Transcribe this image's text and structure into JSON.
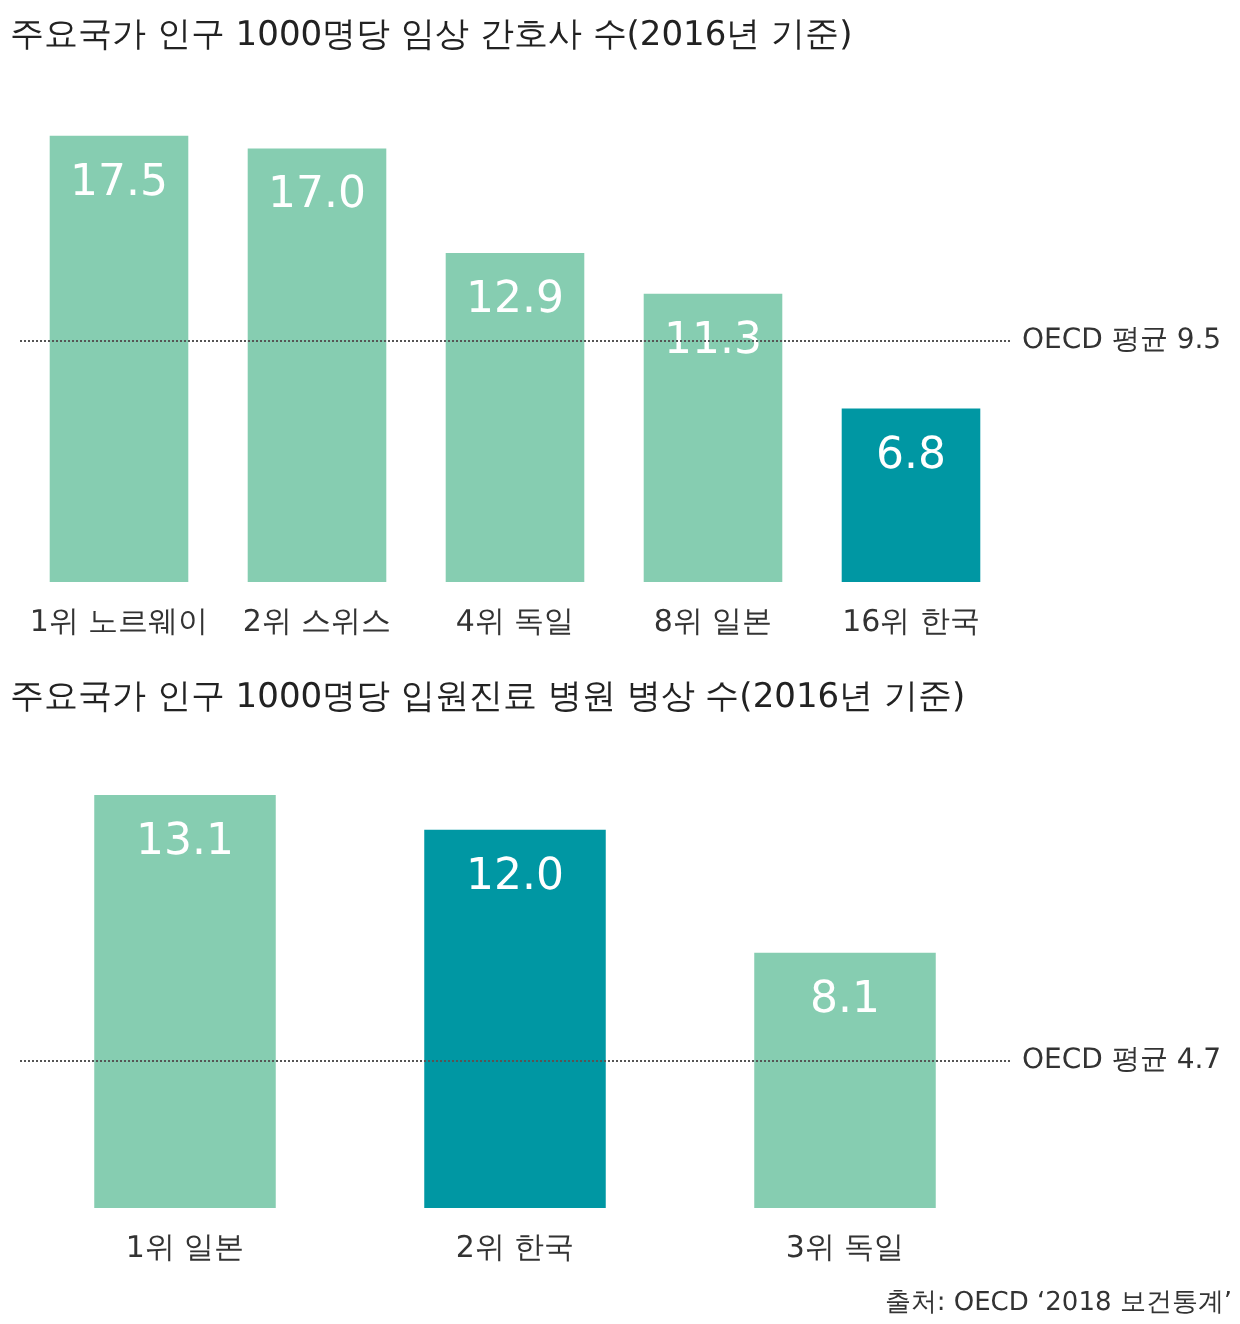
{
  "chart_data": [
    {
      "type": "bar",
      "title": "주요국가 인구 1000명당 임상 간호사 수(2016년 기준)",
      "categories": [
        "1위 노르웨이",
        "2위 스위스",
        "4위 독일",
        "8위 일본",
        "16위 한국"
      ],
      "values": [
        17.5,
        17.0,
        12.9,
        11.3,
        6.8
      ],
      "colors": [
        "#86cdb1",
        "#86cdb1",
        "#86cdb1",
        "#86cdb1",
        "#0097a3"
      ],
      "value_labels": [
        "17.5",
        "17.0",
        "12.9",
        "11.3",
        "6.8"
      ],
      "ref_lines": [
        {
          "axis": "y",
          "value": 9.5,
          "label": "OECD 평균 9.5",
          "line_style": "dotted",
          "color": "#555555"
        }
      ]
    },
    {
      "type": "bar",
      "title": "주요국가 인구 1000명당 입원진료 병원 병상 수(2016년 기준)",
      "categories": [
        "1위 일본",
        "2위 한국",
        "3위 독일"
      ],
      "values": [
        13.1,
        12.0,
        8.1
      ],
      "colors": [
        "#86cdb1",
        "#0097a3",
        "#86cdb1"
      ],
      "value_labels": [
        "13.1",
        "12.0",
        "8.1"
      ],
      "ref_lines": [
        {
          "axis": "y",
          "value": 4.7,
          "label": "OECD 평균 4.7",
          "line_style": "dotted",
          "color": "#555555"
        }
      ],
      "annotations": [
        "출처: OECD ‘2018 보건통계’"
      ]
    }
  ]
}
